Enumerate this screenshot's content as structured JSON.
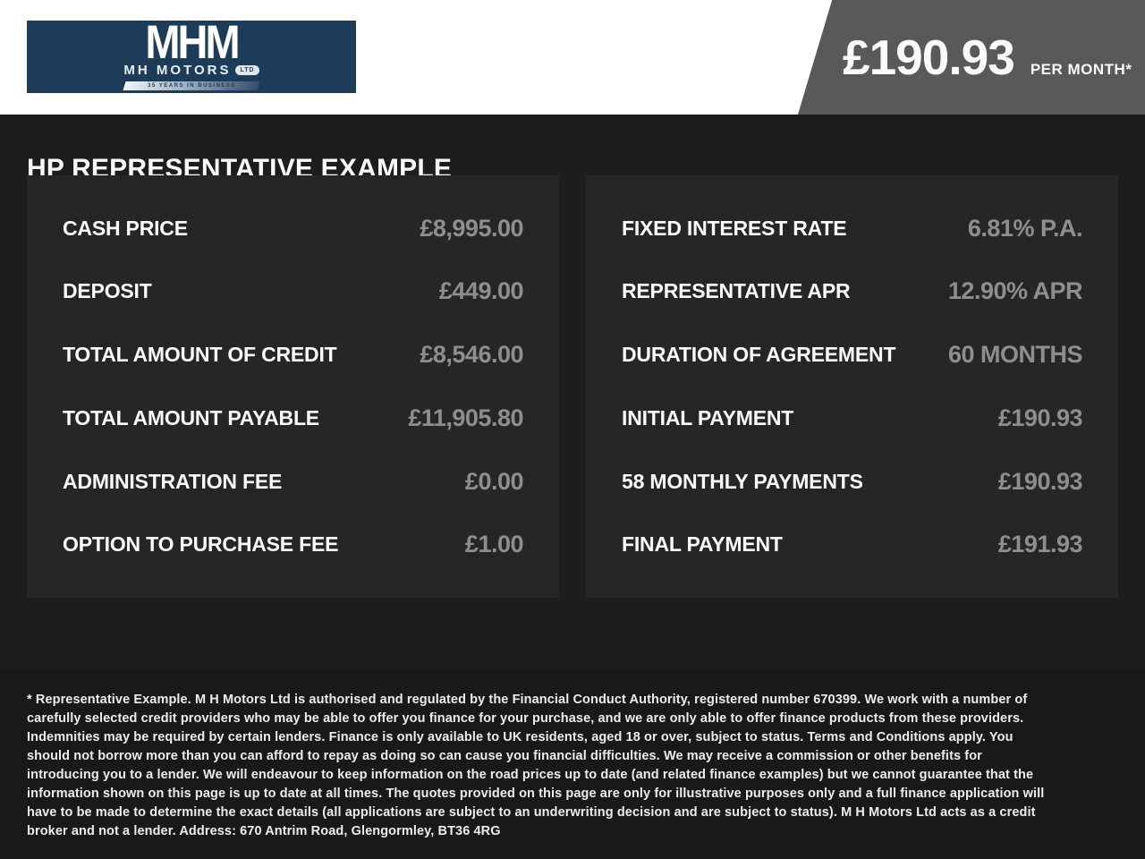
{
  "header": {
    "logo": {
      "monogram": "MHM",
      "name": "MH MOTORS",
      "suffix": "LTD",
      "tagline": "35 YEARS IN BUSINESS"
    },
    "price": {
      "amount": "£190.93",
      "period": "PER MONTH*"
    }
  },
  "page": {
    "title": "HP REPRESENTATIVE EXAMPLE"
  },
  "panels": {
    "left": {
      "rows": [
        {
          "label": "CASH PRICE",
          "value": "£8,995.00"
        },
        {
          "label": "DEPOSIT",
          "value": "£449.00"
        },
        {
          "label": "TOTAL AMOUNT OF CREDIT",
          "value": "£8,546.00"
        },
        {
          "label": "TOTAL AMOUNT PAYABLE",
          "value": "£11,905.80"
        },
        {
          "label": "ADMINISTRATION FEE",
          "value": "£0.00"
        },
        {
          "label": "OPTION TO PURCHASE FEE",
          "value": "£1.00"
        }
      ]
    },
    "right": {
      "rows": [
        {
          "label": "FIXED INTEREST RATE",
          "value": "6.81% P.A."
        },
        {
          "label": "REPRESENTATIVE APR",
          "value": "12.90% APR"
        },
        {
          "label": "DURATION OF AGREEMENT",
          "value": "60 MONTHS"
        },
        {
          "label": "INITIAL PAYMENT",
          "value": "£190.93"
        },
        {
          "label": "58 MONTHLY PAYMENTS",
          "value": "£190.93"
        },
        {
          "label": "FINAL PAYMENT",
          "value": "£191.93"
        }
      ]
    }
  },
  "disclaimer": {
    "text": "* Representative Example. M H Motors Ltd is authorised and regulated by the Financial Conduct Authority, registered number 670399. We work with a number of carefully selected credit providers who may be able to offer you finance for your purchase, and we are only able to offer finance products from these providers. Indemnities may be required by certain lenders. Finance is only available to UK residents, aged 18 or over, subject to status. Terms and Conditions apply. You should not borrow more than you can afford to repay as doing so can cause you financial difficulties. We may receive a commission or other benefits for introducing you to a lender. We will endeavour to keep information on the road prices up to date (and related finance examples) but we cannot guarantee that the information shown on this page is up to date at all times. The quotes provided on this page are only for illustrative purposes only and a full finance application will have to be made to determine the exact details (all applications are subject to an underwriting decision and are subject to status). M H Motors Ltd acts as a credit broker and not a lender. Address: 670 Antrim Road, Glengormley, BT36 4RG"
  },
  "colors": {
    "header_background": "#ffffff",
    "logo_navy": "#1d3c5a",
    "price_flag_gray": "#59595b",
    "page_background": "#1d1d1d",
    "panel_background": "#262626",
    "disclaimer_background": "#191919",
    "label_white": "#fafafa",
    "value_gray": "#8e8e90"
  }
}
